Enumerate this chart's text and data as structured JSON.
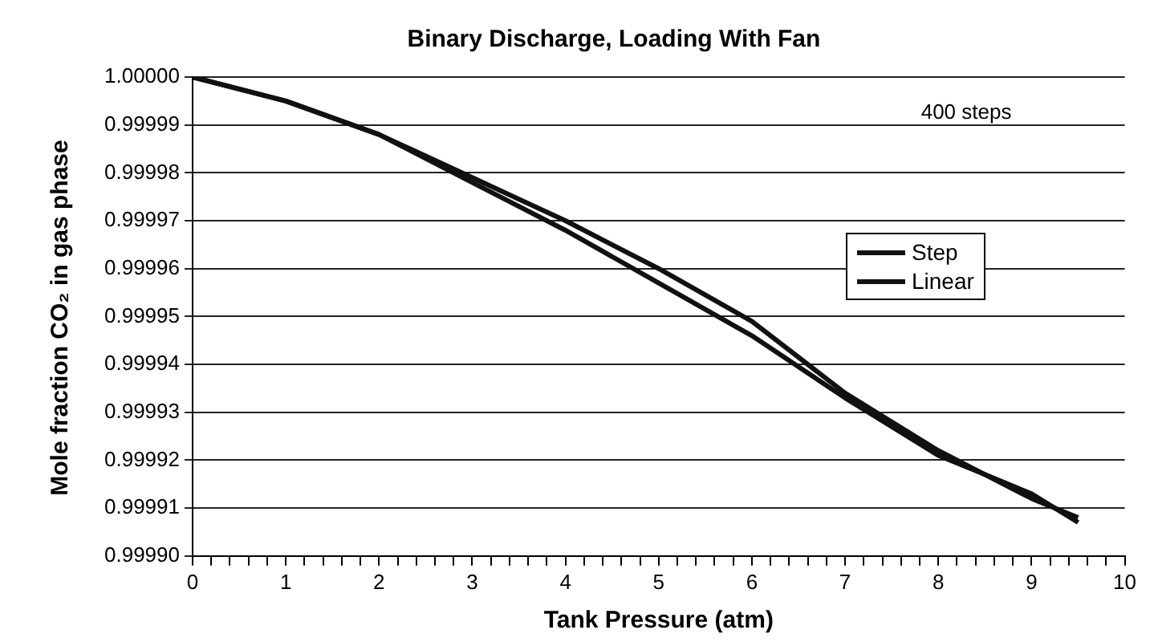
{
  "chart_data": {
    "type": "line",
    "title": "Binary Discharge, Loading With Fan",
    "xlabel": "Tank Pressure (atm)",
    "ylabel": "Mole fraction CO₂ in gas phase",
    "annotations": [
      "400 steps"
    ],
    "x": [
      0,
      1,
      2,
      3,
      4,
      5,
      6,
      7,
      8,
      8.5,
      9,
      9.5
    ],
    "series": [
      {
        "name": "Step",
        "color": "#111111",
        "values": [
          1.0,
          0.999995,
          0.999988,
          0.999979,
          0.99997,
          0.99996,
          0.999949,
          0.999934,
          0.999922,
          0.999917,
          0.999913,
          0.999907
        ]
      },
      {
        "name": "Linear",
        "color": "#111111",
        "values": [
          1.0,
          0.999995,
          0.999988,
          0.999978,
          0.999968,
          0.999957,
          0.999946,
          0.999933,
          0.999921,
          0.999917,
          0.999912,
          0.999908
        ]
      }
    ],
    "xlim": [
      0,
      10
    ],
    "xticks": [
      0,
      {
        "value": 0.2,
        "label": null
      },
      {
        "value": 0.4,
        "label": null
      },
      {
        "value": 0.6,
        "label": null
      },
      {
        "value": 0.8,
        "label": null
      },
      1,
      {
        "value": 1.2,
        "label": null
      },
      {
        "value": 1.4,
        "label": null
      },
      {
        "value": 1.6,
        "label": null
      },
      {
        "value": 1.8,
        "label": null
      },
      2,
      {
        "value": 2.2,
        "label": null
      },
      {
        "value": 2.4,
        "label": null
      },
      {
        "value": 2.6,
        "label": null
      },
      {
        "value": 2.8,
        "label": null
      },
      3,
      {
        "value": 3.2,
        "label": null
      },
      {
        "value": 3.4,
        "label": null
      },
      {
        "value": 3.6,
        "label": null
      },
      {
        "value": 3.8,
        "label": null
      },
      4,
      {
        "value": 4.2,
        "label": null
      },
      {
        "value": 4.4,
        "label": null
      },
      {
        "value": 4.6,
        "label": null
      },
      {
        "value": 4.8,
        "label": null
      },
      5,
      {
        "value": 5.2,
        "label": null
      },
      {
        "value": 5.4,
        "label": null
      },
      {
        "value": 5.6,
        "label": null
      },
      {
        "value": 5.8,
        "label": null
      },
      6,
      {
        "value": 6.2,
        "label": null
      },
      {
        "value": 6.4,
        "label": null
      },
      {
        "value": 6.6,
        "label": null
      },
      {
        "value": 6.8,
        "label": null
      },
      7,
      {
        "value": 7.2,
        "label": null
      },
      {
        "value": 7.4,
        "label": null
      },
      {
        "value": 7.6,
        "label": null
      },
      {
        "value": 7.8,
        "label": null
      },
      8,
      {
        "value": 8.2,
        "label": null
      },
      {
        "value": 8.4,
        "label": null
      },
      {
        "value": 8.6,
        "label": null
      },
      {
        "value": 8.8,
        "label": null
      },
      9,
      {
        "value": 9.2,
        "label": null
      },
      {
        "value": 9.4,
        "label": null
      },
      {
        "value": 9.6,
        "label": null
      },
      {
        "value": 9.8,
        "label": null
      },
      10
    ],
    "ylim": [
      0.9999,
      1.0
    ],
    "yticks": [
      {
        "value": 0.9999,
        "label": "0.99990"
      },
      {
        "value": 0.99991,
        "label": "0.99991"
      },
      {
        "value": 0.99992,
        "label": "0.99992"
      },
      {
        "value": 0.99993,
        "label": "0.99993"
      },
      {
        "value": 0.99994,
        "label": "0.99994"
      },
      {
        "value": 0.99995,
        "label": "0.99995"
      },
      {
        "value": 0.99996,
        "label": "0.99996"
      },
      {
        "value": 0.99997,
        "label": "0.99997"
      },
      {
        "value": 0.99998,
        "label": "0.99998"
      },
      {
        "value": 0.99999,
        "label": "0.99999"
      },
      {
        "value": 1.0,
        "label": "1.00000"
      }
    ],
    "grid": "y",
    "legend": "right",
    "marker": "none",
    "line_style": "solid"
  }
}
